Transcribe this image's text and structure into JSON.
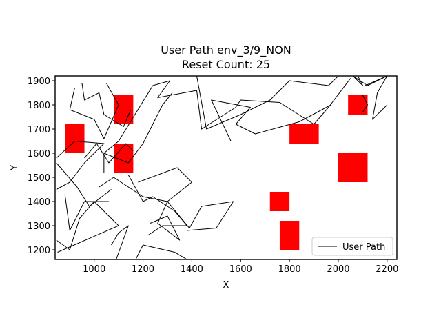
{
  "chart_data": {
    "type": "line",
    "title_line1": "User Path env_3/9_NON",
    "title_line2": "Reset Count: 25",
    "xlabel": "X",
    "ylabel": "Y",
    "xlim": [
      840,
      2240
    ],
    "ylim": [
      1160,
      1920
    ],
    "xticks": [
      1000,
      1200,
      1400,
      1600,
      1800,
      2000,
      2200
    ],
    "yticks": [
      1200,
      1300,
      1400,
      1500,
      1600,
      1700,
      1800,
      1900
    ],
    "legend": {
      "position": "lower-right",
      "label": "User Path"
    },
    "colors": {
      "path": "#000000",
      "obstacle": "#ff0000"
    },
    "obstacles": [
      {
        "x0": 880,
        "x1": 960,
        "y0": 1600,
        "y1": 1720
      },
      {
        "x0": 1080,
        "x1": 1160,
        "y0": 1720,
        "y1": 1840
      },
      {
        "x0": 1080,
        "x1": 1160,
        "y0": 1520,
        "y1": 1640
      },
      {
        "x0": 1800,
        "x1": 1920,
        "y0": 1640,
        "y1": 1720
      },
      {
        "x0": 2040,
        "x1": 2120,
        "y0": 1760,
        "y1": 1840
      },
      {
        "x0": 2000,
        "x1": 2120,
        "y0": 1480,
        "y1": 1600
      },
      {
        "x0": 1720,
        "x1": 1800,
        "y0": 1360,
        "y1": 1440
      },
      {
        "x0": 1760,
        "x1": 1840,
        "y0": 1200,
        "y1": 1320
      }
    ],
    "paths": [
      [
        [
          845,
          1580
        ],
        [
          920,
          1650
        ],
        [
          1040,
          1640
        ],
        [
          960,
          1560
        ],
        [
          900,
          1480
        ],
        [
          845,
          1450
        ]
      ],
      [
        [
          845,
          1560
        ],
        [
          930,
          1460
        ],
        [
          980,
          1380
        ],
        [
          1070,
          1450
        ]
      ],
      [
        [
          880,
          1430
        ],
        [
          900,
          1280
        ],
        [
          960,
          1400
        ],
        [
          1060,
          1400
        ]
      ],
      [
        [
          845,
          1240
        ],
        [
          900,
          1200
        ],
        [
          940,
          1330
        ],
        [
          1000,
          1400
        ],
        [
          1100,
          1300
        ],
        [
          850,
          1190
        ]
      ],
      [
        [
          1090,
          1160
        ],
        [
          1140,
          1300
        ],
        [
          1100,
          1270
        ],
        [
          1070,
          1220
        ]
      ],
      [
        [
          1170,
          1160
        ],
        [
          1200,
          1220
        ],
        [
          1330,
          1190
        ],
        [
          1380,
          1160
        ]
      ],
      [
        [
          1140,
          1510
        ],
        [
          1200,
          1400
        ],
        [
          1240,
          1420
        ],
        [
          1330,
          1360
        ],
        [
          1380,
          1300
        ],
        [
          1280,
          1300
        ],
        [
          1220,
          1260
        ]
      ],
      [
        [
          1180,
          1480
        ],
        [
          1340,
          1540
        ],
        [
          1400,
          1480
        ],
        [
          1300,
          1400
        ],
        [
          1200,
          1420
        ],
        [
          1080,
          1500
        ],
        [
          1020,
          1460
        ]
      ],
      [
        [
          1230,
          1310
        ],
        [
          1300,
          1340
        ],
        [
          1350,
          1240
        ],
        [
          1260,
          1310
        ],
        [
          1300,
          1400
        ],
        [
          1390,
          1290
        ],
        [
          1440,
          1380
        ],
        [
          1570,
          1400
        ],
        [
          1500,
          1290
        ],
        [
          1380,
          1280
        ]
      ],
      [
        [
          1040,
          1520
        ],
        [
          1040,
          1600
        ],
        [
          1100,
          1650
        ],
        [
          1240,
          1880
        ],
        [
          1310,
          1900
        ],
        [
          1260,
          1830
        ],
        [
          1420,
          1860
        ]
      ],
      [
        [
          1040,
          1600
        ],
        [
          1140,
          1560
        ],
        [
          1200,
          1640
        ],
        [
          1280,
          1800
        ],
        [
          1320,
          1850
        ]
      ],
      [
        [
          960,
          1580
        ],
        [
          1010,
          1640
        ],
        [
          1060,
          1560
        ],
        [
          1130,
          1640
        ],
        [
          1160,
          1610
        ]
      ],
      [
        [
          950,
          1890
        ],
        [
          960,
          1820
        ],
        [
          1020,
          1850
        ],
        [
          1040,
          1760
        ],
        [
          1120,
          1710
        ],
        [
          1150,
          1780
        ]
      ],
      [
        [
          1050,
          1890
        ],
        [
          1100,
          1800
        ],
        [
          1040,
          1660
        ],
        [
          1000,
          1740
        ],
        [
          900,
          1780
        ],
        [
          920,
          1870
        ]
      ],
      [
        [
          1420,
          1920
        ],
        [
          1460,
          1700
        ],
        [
          1600,
          1760
        ],
        [
          1720,
          1820
        ],
        [
          1800,
          1900
        ],
        [
          1960,
          1880
        ],
        [
          2000,
          1920
        ]
      ],
      [
        [
          1420,
          1860
        ],
        [
          1440,
          1700
        ],
        [
          1580,
          1790
        ],
        [
          1600,
          1820
        ],
        [
          1760,
          1810
        ],
        [
          1900,
          1720
        ],
        [
          1960,
          1790
        ],
        [
          2050,
          1910
        ]
      ],
      [
        [
          1560,
          1650
        ],
        [
          1480,
          1820
        ],
        [
          1640,
          1790
        ],
        [
          1580,
          1720
        ],
        [
          1660,
          1680
        ],
        [
          1840,
          1730
        ],
        [
          1970,
          1800
        ]
      ],
      [
        [
          2080,
          1920
        ],
        [
          2100,
          1880
        ],
        [
          2060,
          1920
        ],
        [
          2120,
          1880
        ],
        [
          2200,
          1920
        ]
      ],
      [
        [
          2110,
          1880
        ],
        [
          2200,
          1920
        ],
        [
          2160,
          1850
        ],
        [
          2140,
          1740
        ],
        [
          2200,
          1800
        ]
      ],
      [
        [
          2100,
          1840
        ],
        [
          2120,
          1800
        ],
        [
          2100,
          1770
        ]
      ]
    ]
  }
}
